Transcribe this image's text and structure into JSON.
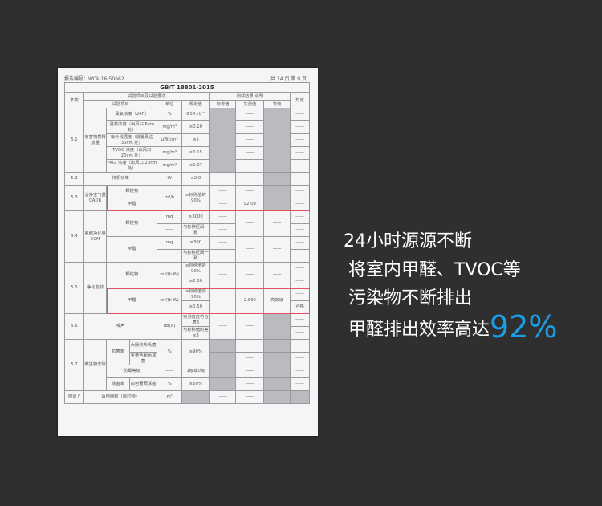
{
  "doc": {
    "report_no": "报告编号：WCk-16-50662",
    "pages": "共 14 页  第 9 页",
    "standard": "GB/T 18801-2015",
    "h": {
      "clause": "条款",
      "req": "试验项目及试验要求",
      "result": "测试结果-说明",
      "judge": "判定",
      "item": "试验项目",
      "unit": "单位",
      "spec": "规定值",
      "nominal": "标称值",
      "measured": "实测值",
      "grade": "等级"
    },
    "dash": "——",
    "r51": {
      "clause": "5.1",
      "group": "有害物质释放量",
      "items": [
        {
          "name": "臭氧浓度（24h）",
          "unit": "%",
          "spec": "≤5×10⁻⁶"
        },
        {
          "name": "臭氧浓度（出风口 5cm 处）",
          "unit": "mg/m³",
          "spec": "≤0.10"
        },
        {
          "name": "紫外线强度（装置周边 30cm 处）",
          "unit": "μW/cm²",
          "spec": "≤5"
        },
        {
          "name": "TVOC 浓度（出风口 20cm 处）",
          "unit": "mg/m³",
          "spec": "≤0.15"
        },
        {
          "name": "PM₁₀ 浓度（出风口 20cm 处）",
          "unit": "mg/m³",
          "spec": "≤0.07"
        }
      ]
    },
    "r52": {
      "clause": "5.2",
      "name": "待机功率",
      "unit": "W",
      "spec": "≤2.0"
    },
    "r53": {
      "clause": "5.3",
      "group": "洁净空气量 CADR",
      "item1": "颗粒物",
      "item2": "甲醛",
      "unit": "m³/h",
      "spec": "≥标称值的90%",
      "measured2": "92.09"
    },
    "r54": {
      "clause": "5.4",
      "group": "累积净化量 CCM",
      "item1": "颗粒物",
      "unit1": "mg",
      "spec1": "≥3000",
      "spec_range": "与标称区间一致",
      "item2": "甲醛",
      "unit2": "mg",
      "spec2": "≥300"
    },
    "r55": {
      "clause": "5.5",
      "group": "净化能效",
      "item1": "颗粒物",
      "unit": "m³/(h·W)",
      "spec_a": "≥标称值的90%",
      "spec1b": "≥2.00",
      "item2": "甲醛",
      "spec2b": "≥0.50",
      "measured2": "2.630",
      "grade2": "高效级",
      "judge2": "合格"
    },
    "r56": {
      "clause": "5.6",
      "name": "噪声",
      "unit": "dB(A)",
      "spec1": "实测值应符合表3",
      "spec2": "与标称值的差≤3"
    },
    "r57": {
      "clause": "5.7",
      "group": "微生物去除",
      "antibac": "抗菌率",
      "bac1": "大肠埃希氏菌",
      "bac2": "金黄色葡萄球菌",
      "pct": "%",
      "spec_antibac": "≥90%",
      "mold": "防霉等级",
      "mold_spec": "1级或0级",
      "steril": "除菌率",
      "bac3": "白色葡萄球菌",
      "spec_steril": "≥50%"
    },
    "rf": {
      "clause": "附录 F",
      "name": "适用面积（颗粒物）",
      "unit": "m²"
    }
  },
  "slogan": {
    "line1": "24小时源源不断",
    "line2": "将室内甲醛、TVOC等",
    "line3": "污染物不断排出",
    "line4": "甲醛排出效率高达",
    "highlight": "92%",
    "highlight_color": "#1a9ee6"
  }
}
